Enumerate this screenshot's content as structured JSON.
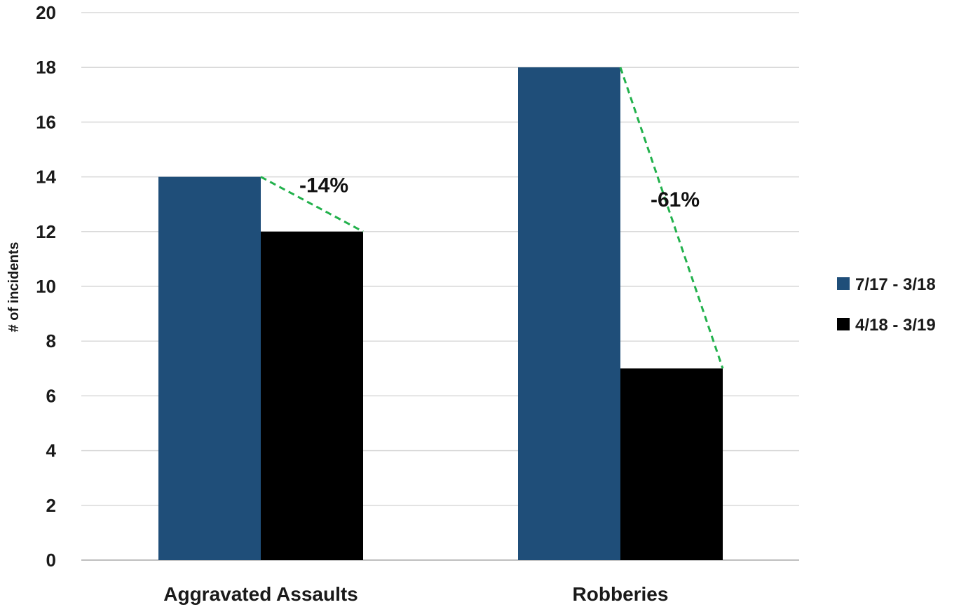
{
  "chart_data": {
    "type": "bar",
    "categories": [
      "Aggravated Assaults",
      "Robberies"
    ],
    "series": [
      {
        "name": "7/17 - 3/18",
        "values": [
          14,
          18
        ],
        "color": "#1f4e79"
      },
      {
        "name": "4/18 - 3/19",
        "values": [
          12,
          7
        ],
        "color": "#000000"
      }
    ],
    "ylabel": "# of incidents",
    "ylim": [
      0,
      20
    ],
    "yticks": [
      0,
      2,
      4,
      6,
      8,
      10,
      12,
      14,
      16,
      18,
      20
    ],
    "grid": true,
    "legend_position": "right",
    "annotations": [
      {
        "category_index": 0,
        "text": "-14%",
        "color": "#22b14c",
        "style": "dashed"
      },
      {
        "category_index": 1,
        "text": "-61%",
        "color": "#22b14c",
        "style": "dashed"
      }
    ]
  }
}
